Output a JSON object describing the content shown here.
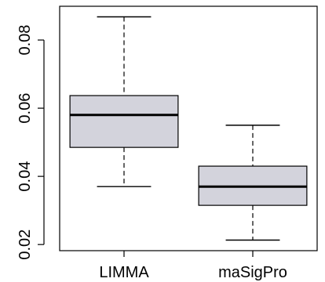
{
  "chart_data": {
    "type": "box",
    "title": "",
    "xlabel": "",
    "ylabel": "",
    "categories": [
      "LIMMA",
      "maSigPro"
    ],
    "boxes": [
      {
        "name": "LIMMA",
        "whisker_low": 0.037,
        "q1": 0.0485,
        "median": 0.058,
        "q3": 0.0637,
        "whisker_high": 0.0868
      },
      {
        "name": "maSigPro",
        "whisker_low": 0.0213,
        "q1": 0.0315,
        "median": 0.037,
        "q3": 0.043,
        "whisker_high": 0.055
      }
    ],
    "yticks": [
      0.02,
      0.04,
      0.06,
      0.08
    ],
    "ytick_labels": [
      "0.02",
      "0.04",
      "0.06",
      "0.08"
    ],
    "ylim": [
      0.0182,
      0.0899
    ],
    "grid": false,
    "colors": {
      "box_fill": "#d3d3dc",
      "stroke": "#000000",
      "median": "#000000"
    }
  }
}
